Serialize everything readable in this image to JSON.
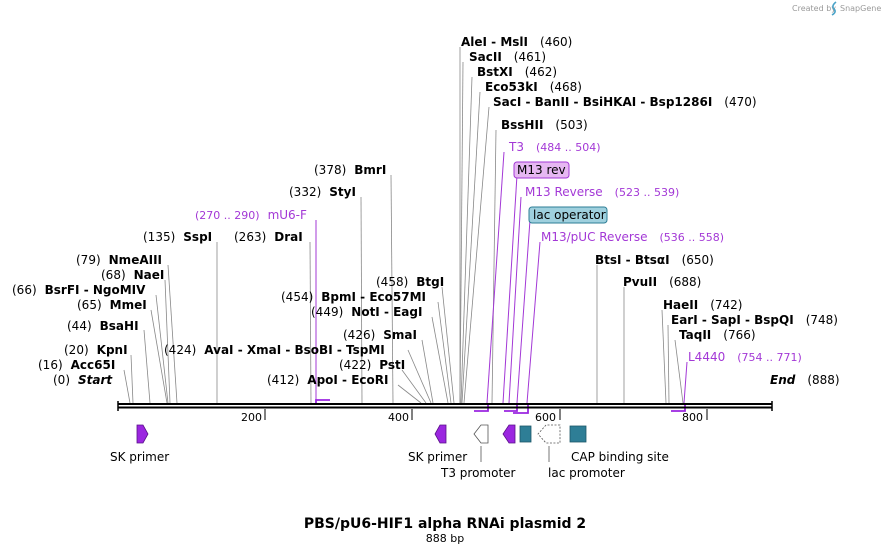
{
  "credit": {
    "prefix": "Created by",
    "brand": "SnapGene"
  },
  "title": "PBS/pU6-HIF1 alpha RNAi plasmid 2",
  "length_label": "888 bp",
  "sequence_length": 888,
  "ticks": [
    "200",
    "400",
    "600",
    "800"
  ],
  "sites": [
    {
      "text": "AleI  -  MslI",
      "pos": "(460)"
    },
    {
      "text": "SacII",
      "pos": "(461)"
    },
    {
      "text": "BstXI",
      "pos": "(462)"
    },
    {
      "text": "Eco53kI",
      "pos": "(468)"
    },
    {
      "text": "SacI  -  BanII  -  BsiHKAI  -  Bsp1286I",
      "pos": "(470)"
    },
    {
      "text": "BssHII",
      "pos": "(503)"
    },
    {
      "text": "BmrI",
      "pos": "(378)"
    },
    {
      "text": "StyI",
      "pos": "(332)"
    },
    {
      "text": "SspI",
      "pos": "(135)"
    },
    {
      "text": "DraI",
      "pos": "(263)"
    },
    {
      "text": "NmeAIII",
      "pos": "(79)"
    },
    {
      "text": "NaeI",
      "pos": "(68)"
    },
    {
      "text": "BsrFI  -  NgoMIV",
      "pos": "(66)"
    },
    {
      "text": "MmeI",
      "pos": "(65)"
    },
    {
      "text": "BsaHI",
      "pos": "(44)"
    },
    {
      "text": "KpnI",
      "pos": "(20)"
    },
    {
      "text": "Acc65I",
      "pos": "(16)"
    },
    {
      "text": "BtgI",
      "pos": "(458)"
    },
    {
      "text": "BpmI  -  Eco57MI",
      "pos": "(454)"
    },
    {
      "text": "NotI  -  EagI",
      "pos": "(449)"
    },
    {
      "text": "AvaI  -  XmaI  -  BsoBI  -  TspMI",
      "pos": "(424)"
    },
    {
      "text": "SmaI",
      "pos": "(426)"
    },
    {
      "text": "PstI",
      "pos": "(422)"
    },
    {
      "text": "ApoI  -  EcoRI",
      "pos": "(412)"
    },
    {
      "text": "BtsI  -  BtsαI",
      "pos": "(650)"
    },
    {
      "text": "PvuII",
      "pos": "(688)"
    },
    {
      "text": "HaeII",
      "pos": "(742)"
    },
    {
      "text": "EarI  -  SapI  -  BspQI",
      "pos": "(748)"
    },
    {
      "text": "TaqII",
      "pos": "(766)"
    }
  ],
  "ends": {
    "start_pos": "(0)",
    "start_label": "Start",
    "end_label": "End",
    "end_pos": "(888)"
  },
  "primers": [
    {
      "name": "T3",
      "range": "(484 .. 504)"
    },
    {
      "name": "M13 rev",
      "range": ""
    },
    {
      "name": "M13 Reverse",
      "range": "(523 .. 539)"
    },
    {
      "name": "lac operator",
      "range": ""
    },
    {
      "name": "M13/pUC Reverse",
      "range": "(536 .. 558)"
    },
    {
      "name": "mU6-F",
      "range": "(270 .. 290)"
    },
    {
      "name": "L4440",
      "range": "(754 .. 771)"
    }
  ],
  "features": {
    "sk_primer_left": "SK primer",
    "sk_primer_right": "SK primer",
    "t3_promoter": "T3 promoter",
    "lac_promoter": "lac promoter",
    "cap_binding_site": "CAP binding site"
  },
  "colors": {
    "primer": "#a338d6",
    "primer_arrow": "#9b26e0",
    "cap_box": "#2e7e96",
    "lac_operator_fill": "#9fd0de",
    "m13rev_fill": "#e6b8f2",
    "backbone": "#000000",
    "credit": "#9a9a9a"
  }
}
